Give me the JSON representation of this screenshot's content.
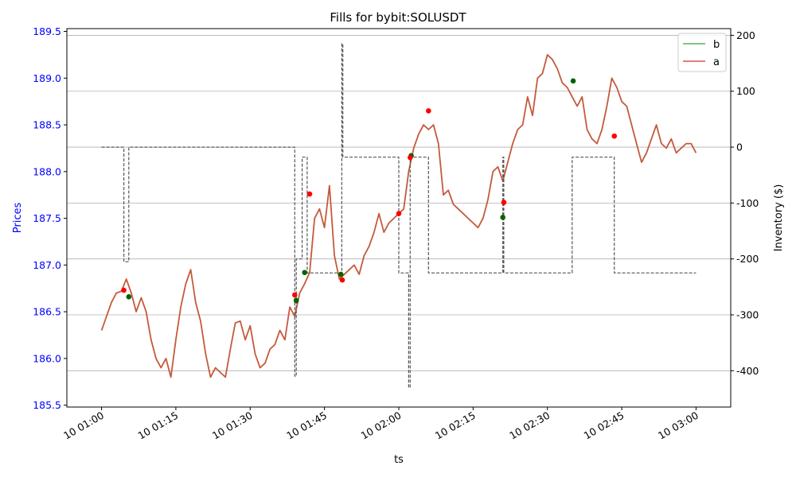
{
  "chart_data": {
    "type": "line",
    "title": "Fills for bybit:SOLUSDT",
    "xlabel": "ts",
    "ylabel_left": "Prices",
    "ylabel_right": "Inventory ($)",
    "x_tick_labels": [
      "10 01:00",
      "10 01:15",
      "10 01:30",
      "10 01:45",
      "10 02:00",
      "10 02:15",
      "10 02:30",
      "10 02:45",
      "10 03:00"
    ],
    "x_range_minutes": [
      -7,
      127
    ],
    "left_ylim": [
      185.48,
      189.53
    ],
    "left_ticks": [
      185.5,
      186.0,
      186.5,
      187.0,
      187.5,
      188.0,
      188.5,
      189.0,
      189.5
    ],
    "right_ylim": [
      -465,
      212
    ],
    "right_ticks": [
      -400,
      -300,
      -200,
      -100,
      0,
      100,
      200
    ],
    "grid": "right-axis horizontal",
    "legend_placement": "top-right",
    "legend": [
      {
        "name": "b",
        "color": "#2ca02c"
      },
      {
        "name": "a",
        "color": "#d62728"
      }
    ],
    "colors": {
      "price_line": "#c45a3c",
      "inventory_line": "#555555",
      "left_axis": "#0000ff",
      "buy_fill": "#006400",
      "sell_fill": "#ff0000"
    },
    "price_series": {
      "name": "price",
      "points": [
        [
          0,
          186.3
        ],
        [
          1,
          186.45
        ],
        [
          2,
          186.6
        ],
        [
          3,
          186.7
        ],
        [
          4,
          186.72
        ],
        [
          5,
          186.85
        ],
        [
          6,
          186.7
        ],
        [
          7,
          186.5
        ],
        [
          8,
          186.65
        ],
        [
          9,
          186.5
        ],
        [
          10,
          186.2
        ],
        [
          11,
          186.0
        ],
        [
          12,
          185.9
        ],
        [
          13,
          186.0
        ],
        [
          14,
          185.8
        ],
        [
          15,
          186.2
        ],
        [
          16,
          186.55
        ],
        [
          17,
          186.8
        ],
        [
          18,
          186.95
        ],
        [
          19,
          186.6
        ],
        [
          20,
          186.4
        ],
        [
          21,
          186.05
        ],
        [
          22,
          185.8
        ],
        [
          23,
          185.9
        ],
        [
          24,
          185.85
        ],
        [
          25,
          185.8
        ],
        [
          26,
          186.1
        ],
        [
          27,
          186.38
        ],
        [
          28,
          186.4
        ],
        [
          29,
          186.2
        ],
        [
          30,
          186.35
        ],
        [
          31,
          186.05
        ],
        [
          32,
          185.9
        ],
        [
          33,
          185.95
        ],
        [
          34,
          186.1
        ],
        [
          35,
          186.15
        ],
        [
          36,
          186.3
        ],
        [
          37,
          186.2
        ],
        [
          38,
          186.55
        ],
        [
          39,
          186.45
        ],
        [
          40,
          186.7
        ],
        [
          41,
          186.8
        ],
        [
          42,
          186.92
        ],
        [
          43,
          187.5
        ],
        [
          44,
          187.6
        ],
        [
          45,
          187.4
        ],
        [
          46,
          187.85
        ],
        [
          47,
          187.1
        ],
        [
          48,
          186.85
        ],
        [
          49,
          186.9
        ],
        [
          50,
          186.95
        ],
        [
          51,
          187.0
        ],
        [
          52,
          186.9
        ],
        [
          53,
          187.1
        ],
        [
          54,
          187.2
        ],
        [
          55,
          187.35
        ],
        [
          56,
          187.55
        ],
        [
          57,
          187.35
        ],
        [
          58,
          187.45
        ],
        [
          59,
          187.5
        ],
        [
          60,
          187.55
        ],
        [
          61,
          187.6
        ],
        [
          62,
          188.0
        ],
        [
          63,
          188.25
        ],
        [
          64,
          188.4
        ],
        [
          65,
          188.5
        ],
        [
          66,
          188.45
        ],
        [
          67,
          188.5
        ],
        [
          68,
          188.3
        ],
        [
          69,
          187.75
        ],
        [
          70,
          187.8
        ],
        [
          71,
          187.65
        ],
        [
          72,
          187.6
        ],
        [
          73,
          187.55
        ],
        [
          74,
          187.5
        ],
        [
          75,
          187.45
        ],
        [
          76,
          187.4
        ],
        [
          77,
          187.5
        ],
        [
          78,
          187.7
        ],
        [
          79,
          188.0
        ],
        [
          80,
          188.05
        ],
        [
          81,
          187.9
        ],
        [
          82,
          188.1
        ],
        [
          83,
          188.3
        ],
        [
          84,
          188.45
        ],
        [
          85,
          188.5
        ],
        [
          86,
          188.8
        ],
        [
          87,
          188.6
        ],
        [
          88,
          189.0
        ],
        [
          89,
          189.05
        ],
        [
          90,
          189.25
        ],
        [
          91,
          189.2
        ],
        [
          92,
          189.1
        ],
        [
          93,
          188.95
        ],
        [
          94,
          188.9
        ],
        [
          95,
          188.8
        ],
        [
          96,
          188.7
        ],
        [
          97,
          188.8
        ],
        [
          98,
          188.45
        ],
        [
          99,
          188.35
        ],
        [
          100,
          188.3
        ],
        [
          101,
          188.45
        ],
        [
          102,
          188.7
        ],
        [
          103,
          189.0
        ],
        [
          104,
          188.9
        ],
        [
          105,
          188.75
        ],
        [
          106,
          188.7
        ],
        [
          107,
          188.5
        ],
        [
          108,
          188.3
        ],
        [
          109,
          188.1
        ],
        [
          110,
          188.2
        ],
        [
          111,
          188.35
        ],
        [
          112,
          188.5
        ],
        [
          113,
          188.3
        ],
        [
          114,
          188.25
        ],
        [
          115,
          188.35
        ],
        [
          116,
          188.2
        ],
        [
          117,
          188.25
        ],
        [
          118,
          188.3
        ],
        [
          119,
          188.3
        ],
        [
          120,
          188.2
        ]
      ]
    },
    "inventory_series": {
      "name": "inventory",
      "points": [
        [
          0,
          0
        ],
        [
          4.5,
          0
        ],
        [
          4.5,
          -205
        ],
        [
          5.5,
          -205
        ],
        [
          5.5,
          0
        ],
        [
          39,
          0
        ],
        [
          39,
          -410
        ],
        [
          39.3,
          -410
        ],
        [
          39.3,
          -200
        ],
        [
          40.5,
          -200
        ],
        [
          40.5,
          -18
        ],
        [
          41.5,
          -18
        ],
        [
          41.5,
          -225
        ],
        [
          48.5,
          -225
        ],
        [
          48.5,
          185
        ],
        [
          48.7,
          185
        ],
        [
          48.7,
          -18
        ],
        [
          60,
          -18
        ],
        [
          60,
          -225
        ],
        [
          62,
          -225
        ],
        [
          62,
          -430
        ],
        [
          62.3,
          -430
        ],
        [
          62.3,
          -18
        ],
        [
          66,
          -18
        ],
        [
          66,
          -225
        ],
        [
          81,
          -225
        ],
        [
          81,
          -18
        ],
        [
          81.2,
          -18
        ],
        [
          81.2,
          -225
        ],
        [
          95,
          -225
        ],
        [
          95,
          -18
        ],
        [
          103.5,
          -18
        ],
        [
          103.5,
          -225
        ],
        [
          120,
          -225
        ]
      ]
    },
    "fills": [
      {
        "side": "a",
        "t": 4.5,
        "price": 186.73
      },
      {
        "side": "b",
        "t": 5.5,
        "price": 186.66
      },
      {
        "side": "a",
        "t": 39.0,
        "price": 186.68
      },
      {
        "side": "b",
        "t": 39.3,
        "price": 186.62
      },
      {
        "side": "b",
        "t": 41.0,
        "price": 186.92
      },
      {
        "side": "a",
        "t": 42.0,
        "price": 187.76
      },
      {
        "side": "b",
        "t": 48.3,
        "price": 186.9
      },
      {
        "side": "a",
        "t": 48.6,
        "price": 186.84
      },
      {
        "side": "a",
        "t": 60.0,
        "price": 187.55
      },
      {
        "side": "b",
        "t": 62.5,
        "price": 188.17
      },
      {
        "side": "a",
        "t": 62.3,
        "price": 188.15
      },
      {
        "side": "a",
        "t": 66.0,
        "price": 188.65
      },
      {
        "side": "b",
        "t": 81.0,
        "price": 187.51
      },
      {
        "side": "a",
        "t": 81.2,
        "price": 187.67
      },
      {
        "side": "b",
        "t": 95.2,
        "price": 188.97
      },
      {
        "side": "a",
        "t": 103.5,
        "price": 188.38
      }
    ]
  }
}
